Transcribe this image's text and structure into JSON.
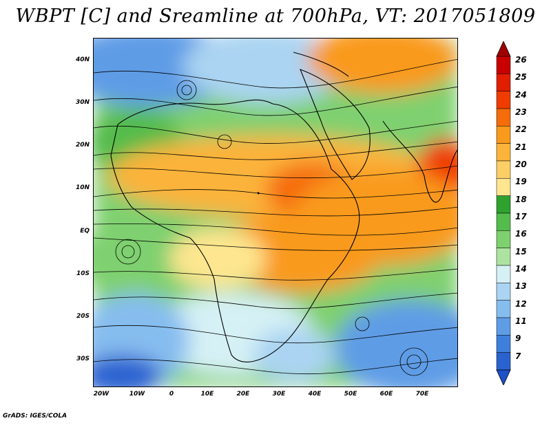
{
  "title": "WBPT [C] and Sreamline at 700hPa, VT: 2017051809",
  "credit": "GrADS: IGES/COLA",
  "lat_labels": [
    "40N",
    "30N",
    "20N",
    "10N",
    "EQ",
    "10S",
    "20S",
    "30S"
  ],
  "lon_labels": [
    "20W",
    "10W",
    "0",
    "10E",
    "20E",
    "30E",
    "40E",
    "50E",
    "60E",
    "70E"
  ],
  "colorbar": {
    "labels": [
      "26",
      "25",
      "24",
      "23",
      "22",
      "21",
      "20",
      "19",
      "18",
      "17",
      "16",
      "15",
      "14",
      "13",
      "12",
      "11",
      "9",
      "7"
    ],
    "colors": [
      "#c80000",
      "#e21e00",
      "#f03c00",
      "#f56c0a",
      "#f99a1c",
      "#fbb33a",
      "#fccf66",
      "#fde68f",
      "#2fa12f",
      "#54bc4c",
      "#7fd06f",
      "#ade3a0",
      "#d6f1f5",
      "#aad4f2",
      "#86bdef",
      "#5e9ce6",
      "#3f7fdc",
      "#2a62d0"
    ],
    "top_color": "#a00000",
    "bottom_color": "#1e50c8"
  }
}
